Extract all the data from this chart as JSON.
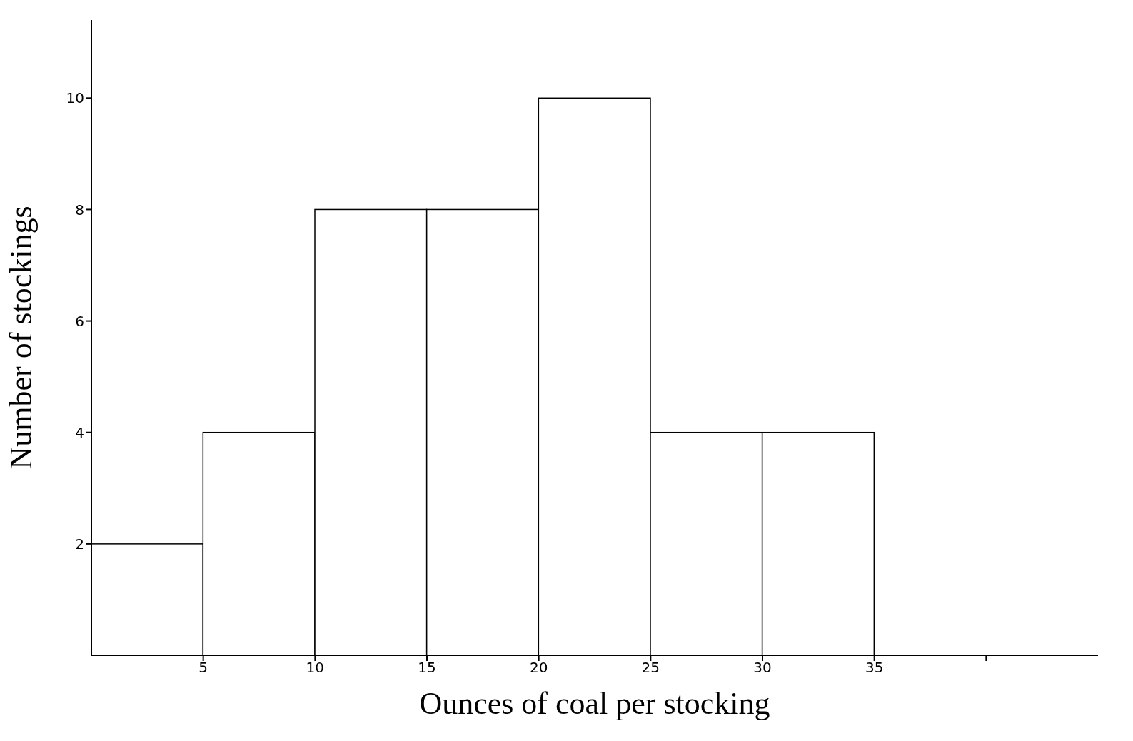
{
  "chart_data": {
    "type": "histogram",
    "xlabel": "Ounces of coal per stocking",
    "ylabel": "Number of stockings",
    "bins": [
      0,
      5,
      10,
      15,
      20,
      25,
      30,
      35
    ],
    "values": [
      2,
      4,
      8,
      8,
      10,
      4,
      4
    ],
    "color": "#ffffff",
    "xlim": [
      0,
      45
    ],
    "ylim": [
      0,
      11.4
    ],
    "xticks": [
      5,
      10,
      15,
      20,
      25,
      30,
      35,
      {
        "value": 40,
        "label": null
      }
    ],
    "yticks": [
      2,
      4,
      6,
      8,
      10
    ],
    "grid": false,
    "legend": false
  }
}
